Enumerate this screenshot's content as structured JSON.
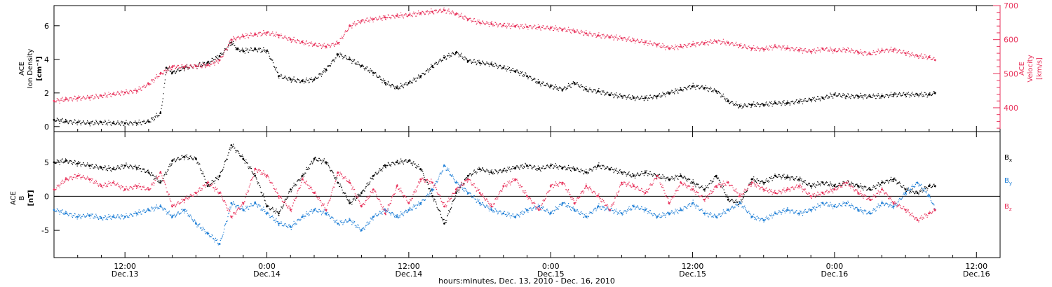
{
  "title": "",
  "x_axis": {
    "label": "hours:minutes, Dec. 13, 2010 - Dec. 16, 2010",
    "ticks": [
      {
        "hour": 12,
        "time": "12:00",
        "day": "Dec.13"
      },
      {
        "hour": 24,
        "time": "0:00",
        "day": "Dec.14"
      },
      {
        "hour": 36,
        "time": "12:00",
        "day": "Dec.14"
      },
      {
        "hour": 48,
        "time": "0:00",
        "day": "Dec.15"
      },
      {
        "hour": 60,
        "time": "12:00",
        "day": "Dec.15"
      },
      {
        "hour": 72,
        "time": "0:00",
        "day": "Dec.16"
      },
      {
        "hour": 84,
        "time": "12:00",
        "day": "Dec.16"
      }
    ],
    "range_hours": [
      6,
      86
    ]
  },
  "colors": {
    "density": "#000000",
    "velocity": "#e8335c",
    "bx": "#000000",
    "by": "#1f7fd6",
    "bz": "#e8335c"
  },
  "chart_data": [
    {
      "type": "scatter",
      "panel": "plasma",
      "left_axis": {
        "label_lines": [
          "ACE",
          "Ion Density"
        ],
        "unit": "[cm⁻³]",
        "ylim": [
          -0.3,
          7.2
        ],
        "ticks": [
          0,
          2,
          4,
          6
        ]
      },
      "right_axis": {
        "label_lines": [
          "ACE",
          "Velocity"
        ],
        "unit": "[km/s]",
        "ylim": [
          330,
          700
        ],
        "ticks": [
          400,
          500,
          600,
          700
        ]
      },
      "series": [
        {
          "key": "density",
          "axis": "left",
          "x": [
            6,
            7,
            8,
            9,
            10,
            11,
            12,
            13,
            14,
            15,
            15.5,
            16,
            17,
            18,
            19,
            20,
            21,
            21.5,
            22,
            23,
            24,
            25,
            26,
            27,
            28,
            29,
            30,
            31,
            32,
            33,
            34,
            35,
            36,
            37,
            38,
            39,
            40,
            41,
            42,
            43,
            44,
            45,
            46,
            47,
            48,
            49,
            50,
            51,
            52,
            53,
            54,
            55,
            56,
            57,
            58,
            59,
            60,
            61,
            62,
            63,
            64,
            65,
            66,
            67,
            68,
            69,
            70,
            71,
            72,
            73,
            74,
            75,
            76,
            77,
            78,
            79,
            80,
            80.5
          ],
          "y": [
            0.4,
            0.3,
            0.25,
            0.2,
            0.25,
            0.2,
            0.2,
            0.2,
            0.3,
            0.8,
            3.5,
            3.2,
            3.5,
            3.6,
            3.8,
            4.2,
            5.0,
            4.6,
            4.5,
            4.6,
            4.5,
            3.0,
            2.8,
            2.7,
            2.8,
            3.4,
            4.3,
            4.0,
            3.6,
            3.2,
            2.6,
            2.3,
            2.6,
            3.0,
            3.6,
            4.1,
            4.4,
            3.9,
            3.8,
            3.7,
            3.5,
            3.3,
            3.0,
            2.6,
            2.4,
            2.2,
            2.6,
            2.2,
            2.1,
            1.9,
            1.8,
            1.7,
            1.7,
            1.8,
            2.0,
            2.2,
            2.4,
            2.3,
            2.1,
            1.5,
            1.2,
            1.3,
            1.3,
            1.4,
            1.4,
            1.5,
            1.6,
            1.7,
            1.9,
            1.8,
            1.8,
            1.8,
            1.8,
            1.9,
            1.9,
            1.9,
            1.9,
            2.0
          ]
        },
        {
          "key": "velocity",
          "axis": "right",
          "x": [
            6,
            7,
            8,
            9,
            10,
            11,
            12,
            13,
            14,
            15,
            16,
            17,
            18,
            19,
            20,
            21,
            22,
            23,
            24,
            25,
            26,
            27,
            28,
            29,
            30,
            31,
            32,
            33,
            34,
            35,
            36,
            37,
            38,
            39,
            40,
            41,
            42,
            43,
            44,
            45,
            46,
            47,
            48,
            49,
            50,
            51,
            52,
            53,
            54,
            55,
            56,
            57,
            58,
            59,
            60,
            61,
            62,
            63,
            64,
            65,
            66,
            67,
            68,
            69,
            70,
            71,
            72,
            73,
            74,
            75,
            76,
            77,
            78,
            79,
            80,
            80.5
          ],
          "y": [
            420,
            425,
            428,
            430,
            435,
            440,
            445,
            450,
            470,
            500,
            520,
            520,
            522,
            525,
            540,
            600,
            610,
            615,
            620,
            612,
            600,
            592,
            585,
            580,
            590,
            640,
            655,
            660,
            665,
            670,
            672,
            678,
            682,
            686,
            675,
            660,
            650,
            646,
            642,
            640,
            638,
            636,
            634,
            630,
            625,
            618,
            612,
            608,
            604,
            598,
            592,
            585,
            575,
            580,
            586,
            590,
            595,
            590,
            582,
            574,
            572,
            580,
            575,
            570,
            565,
            573,
            568,
            570,
            563,
            558,
            568,
            570,
            560,
            552,
            548,
            540
          ]
        }
      ]
    },
    {
      "type": "scatter",
      "panel": "magnetic",
      "left_axis": {
        "label_lines": [
          "ACE",
          "B"
        ],
        "unit": "[nT]",
        "ylim": [
          -9.0,
          9.5
        ],
        "ticks": [
          -5,
          0,
          5
        ]
      },
      "legend": [
        {
          "key": "bx",
          "label": "B",
          "sub": "x"
        },
        {
          "key": "by",
          "label": "B",
          "sub": "y"
        },
        {
          "key": "bz",
          "label": "B",
          "sub": "z"
        }
      ],
      "series": [
        {
          "key": "bx",
          "x": [
            6,
            7,
            8,
            9,
            10,
            11,
            12,
            13,
            14,
            15,
            16,
            17,
            18,
            19,
            20,
            21,
            22,
            23,
            24,
            25,
            26,
            27,
            28,
            29,
            30,
            31,
            32,
            33,
            34,
            35,
            36,
            37,
            38,
            39,
            40,
            41,
            42,
            43,
            44,
            45,
            46,
            47,
            48,
            49,
            50,
            51,
            52,
            53,
            54,
            55,
            56,
            57,
            58,
            59,
            60,
            61,
            62,
            63,
            64,
            65,
            66,
            67,
            68,
            69,
            70,
            71,
            72,
            73,
            74,
            75,
            76,
            77,
            78,
            79,
            80,
            80.5
          ],
          "y": [
            5,
            5.2,
            4.8,
            4.5,
            4.2,
            4.0,
            4.5,
            4.2,
            3.5,
            2.0,
            5.2,
            5.8,
            5.5,
            1.5,
            3.0,
            7.5,
            5.5,
            3.0,
            -1.5,
            -2.5,
            1.0,
            3.0,
            5.5,
            5.0,
            2.0,
            -1.0,
            0.5,
            3.0,
            4.5,
            5.0,
            5.2,
            4.0,
            0.0,
            -4.0,
            0.5,
            3.0,
            4.0,
            3.5,
            3.8,
            4.2,
            4.5,
            4.0,
            4.5,
            4.2,
            4.0,
            3.5,
            4.5,
            4.0,
            3.5,
            3.0,
            3.5,
            3.0,
            2.5,
            3.0,
            2.0,
            1.0,
            3.0,
            -0.5,
            -1.0,
            2.5,
            2.0,
            3.0,
            2.8,
            2.5,
            1.5,
            2.0,
            1.5,
            2.0,
            1.5,
            1.0,
            2.0,
            2.5,
            1.0,
            0.5,
            1.5,
            1.5
          ]
        },
        {
          "key": "by",
          "x": [
            6,
            7,
            8,
            9,
            10,
            11,
            12,
            13,
            14,
            15,
            16,
            17,
            18,
            19,
            20,
            21,
            22,
            23,
            24,
            25,
            26,
            27,
            28,
            29,
            30,
            31,
            32,
            33,
            34,
            35,
            36,
            37,
            38,
            39,
            40,
            41,
            42,
            43,
            44,
            45,
            46,
            47,
            48,
            49,
            50,
            51,
            52,
            53,
            54,
            55,
            56,
            57,
            58,
            59,
            60,
            61,
            62,
            63,
            64,
            65,
            66,
            67,
            68,
            69,
            70,
            71,
            72,
            73,
            74,
            75,
            76,
            77,
            78,
            79,
            80,
            80.5
          ],
          "y": [
            -2,
            -2.5,
            -3.0,
            -2.8,
            -3.2,
            -3.0,
            -3.0,
            -2.5,
            -2.0,
            -1.5,
            -3.0,
            -2.0,
            -4.0,
            -5.5,
            -7.0,
            -1.0,
            -2.0,
            -1.0,
            -2.5,
            -4.0,
            -4.5,
            -3.0,
            -2.0,
            -2.5,
            -4.0,
            -3.5,
            -5.0,
            -3.0,
            -2.0,
            -3.0,
            -2.0,
            -1.0,
            1.0,
            4.5,
            2.0,
            0.5,
            -1.0,
            -2.0,
            -2.5,
            -3.0,
            -2.0,
            -1.5,
            -2.5,
            -1.0,
            -2.0,
            -3.0,
            -1.5,
            -2.0,
            -2.5,
            -1.5,
            -2.0,
            -3.0,
            -2.5,
            -2.0,
            -1.0,
            -2.5,
            -3.0,
            -2.0,
            -1.0,
            -3.0,
            -3.5,
            -2.5,
            -2.0,
            -2.5,
            -2.0,
            -1.0,
            -1.5,
            -1.0,
            -2.0,
            -2.5,
            -1.0,
            -1.5,
            0.5,
            2.0,
            0.0,
            -2.0
          ]
        },
        {
          "key": "bz",
          "x": [
            6,
            7,
            8,
            9,
            10,
            11,
            12,
            13,
            14,
            15,
            16,
            17,
            18,
            19,
            20,
            21,
            22,
            23,
            24,
            25,
            26,
            27,
            28,
            29,
            30,
            31,
            32,
            33,
            34,
            35,
            36,
            37,
            38,
            39,
            40,
            41,
            42,
            43,
            44,
            45,
            46,
            47,
            48,
            49,
            50,
            51,
            52,
            53,
            54,
            55,
            56,
            57,
            58,
            59,
            60,
            61,
            62,
            63,
            64,
            65,
            66,
            67,
            68,
            69,
            70,
            71,
            72,
            73,
            74,
            75,
            76,
            77,
            78,
            79,
            80,
            80.5
          ],
          "y": [
            1.0,
            2.5,
            3.0,
            2.5,
            1.5,
            2.0,
            1.0,
            1.5,
            1.0,
            3.5,
            -1.5,
            -0.5,
            0.5,
            2.0,
            0.5,
            -3.0,
            -1.0,
            4.0,
            3.0,
            0.0,
            -2.0,
            2.5,
            0.5,
            -2.0,
            3.5,
            2.0,
            -1.5,
            1.0,
            -2.5,
            1.5,
            -1.0,
            2.5,
            2.0,
            -1.5,
            1.0,
            2.5,
            0.5,
            -1.5,
            1.5,
            2.5,
            0.0,
            -2.0,
            1.5,
            2.0,
            -1.0,
            1.5,
            0.0,
            -2.0,
            2.0,
            1.5,
            0.5,
            3.0,
            -1.0,
            2.0,
            1.0,
            -0.5,
            1.5,
            2.0,
            0.0,
            2.0,
            1.0,
            0.5,
            1.0,
            1.5,
            0.0,
            0.5,
            1.0,
            2.0,
            0.5,
            -0.5,
            1.0,
            -1.0,
            -2.0,
            -3.5,
            -2.5,
            -2.0
          ]
        }
      ]
    }
  ]
}
